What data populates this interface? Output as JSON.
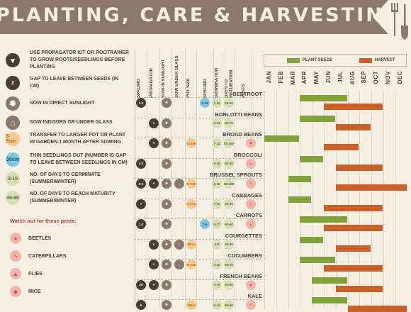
{
  "header": {
    "title": "PLANTING, CARE & HARVESTING"
  },
  "key": [
    {
      "icon": "propagator-icon",
      "text": "USE PROPAGATOR KIT OR ROOTRAINER TO GROW ROOTS/SEEDLINGS BEFORE PLANTING",
      "badge": ""
    },
    {
      "icon": "spacing-icon",
      "text": "GAP TO LEAVE BETWEEN SEEDS (IN CM)",
      "badge": "2"
    },
    {
      "icon": "sun-icon",
      "text": "SOW IN DIRECT SUNLIGHT",
      "badge": ""
    },
    {
      "icon": "house-icon",
      "text": "SOW INDOORS OR UNDER GLASS",
      "badge": ""
    },
    {
      "icon": "pot-icon",
      "text": "TRANSFER TO LARGER POT OR PLANT IN GARDEN 1 MONTH AFTER SOWING",
      "badge": "5-7cm"
    },
    {
      "icon": "thin-icon",
      "text": "THIN SEEDLINGS OUT (NUMBER IS GAP TO LEAVE BETWEEN SEEDLINGS IN CM)",
      "badge": "30cm"
    },
    {
      "icon": "germinate-icon",
      "text": "NO. OF DAYS TO GERMINATE (SUMMER/WINTER)",
      "badge": "3-10"
    },
    {
      "icon": "maturity-icon",
      "text": "NO. OF DAYS TO REACH MATURITY (SUMMER/WINTER)",
      "badge": "45-60"
    }
  ],
  "pests": {
    "title": "Watch out for these pests:",
    "items": [
      "BEETLES",
      "CATERPILLARS",
      "FLIES",
      "MICE"
    ]
  },
  "columns": [
    "SPACING",
    "PROPAGATOR",
    "SOW IN SUNLIGHT",
    "SOW UNDER GLASS",
    "POT SIZE",
    "SPACING",
    "GERMINATION",
    "DAYS TO MATURATION",
    "PESTS"
  ],
  "legend": {
    "plant": "PLANT SEEDS",
    "harvest": "HARVEST"
  },
  "months": [
    "JAN",
    "FEB",
    "MAR",
    "APR",
    "MAY",
    "JUN",
    "JUL",
    "AUG",
    "SEP",
    "OCT",
    "NOV",
    "DEC"
  ],
  "colors": {
    "plant": "#7fa33a",
    "harvest": "#c9612b",
    "dark": "#4a3b33",
    "banner": "#8a7868"
  },
  "vegetables": [
    {
      "name": "BEETROOT",
      "spacing": "2-3",
      "prop": false,
      "sun": true,
      "glass": false,
      "pot": "",
      "thin": "5-10",
      "germ": "7-10",
      "mat": "50-60",
      "pest": "none",
      "plant": [
        3,
        6
      ],
      "harvest": [
        5,
        9
      ]
    },
    {
      "name": "BORLOTTI BEANS",
      "spacing": "",
      "prop": true,
      "sun": true,
      "glass": false,
      "pot": "",
      "thin": "",
      "germ": "5-12",
      "mat": "50-70",
      "pest": "none",
      "plant": [
        3,
        5
      ],
      "harvest": [
        6,
        8
      ]
    },
    {
      "name": "BROAD BEANS",
      "spacing": "",
      "prop": true,
      "sun": true,
      "glass": false,
      "pot": "5-7cm",
      "thin": "",
      "germ": "7-10",
      "mat": "80-100",
      "pest": "mice",
      "plant": [
        0,
        2
      ],
      "harvest": [
        5,
        7
      ]
    },
    {
      "name": "BROCCOLI",
      "spacing": "2-5",
      "prop": false,
      "sun": true,
      "glass": false,
      "pot": "",
      "thin": "",
      "germ": "5-10",
      "mat": "60-80",
      "pest": "flies",
      "plant": [
        3,
        4
      ],
      "harvest": [
        6,
        9
      ]
    },
    {
      "name": "BRUSSEL SPROUTS",
      "spacing": "2-5",
      "prop": true,
      "sun": true,
      "glass": true,
      "pot": "5-7cm",
      "thin": "",
      "germ": "5-10",
      "mat": "80-100",
      "pest": "caterpillars",
      "plant": [
        2,
        3
      ],
      "harvest": [
        6,
        11
      ]
    },
    {
      "name": "CABBAGES",
      "spacing": "7",
      "prop": false,
      "sun": true,
      "glass": false,
      "pot": "5-7cm",
      "thin": "",
      "germ": "7-10",
      "mat": "50-60",
      "pest": "caterpillars",
      "plant": [
        2,
        3
      ],
      "harvest": [
        5,
        9
      ]
    },
    {
      "name": "CARROTS",
      "spacing": "1-2",
      "prop": false,
      "sun": true,
      "glass": false,
      "pot": "",
      "thin": "2-5",
      "germ": "5-17",
      "mat": "50-60",
      "pest": "flies",
      "plant": [
        3,
        6
      ],
      "harvest": [
        5,
        9
      ]
    },
    {
      "name": "COURGETTES",
      "spacing": "",
      "prop": true,
      "sun": true,
      "glass": true,
      "pot": "30cm",
      "thin": "",
      "germ": "4-8",
      "mat": "40-60",
      "pest": "none",
      "plant": [
        3,
        4
      ],
      "harvest": [
        6,
        8
      ]
    },
    {
      "name": "CUCUMBERS",
      "spacing": "",
      "prop": true,
      "sun": true,
      "glass": true,
      "pot": "5-7cm",
      "thin": "",
      "germ": "3-10",
      "mat": "50-70",
      "pest": "none",
      "plant": [
        3,
        5
      ],
      "harvest": [
        5,
        9
      ]
    },
    {
      "name": "FRENCH BEANS",
      "spacing": "20",
      "prop": true,
      "sun": true,
      "glass": false,
      "pot": "",
      "thin": "",
      "germ": "4-10",
      "mat": "50-60",
      "pest": "mice",
      "plant": [
        4,
        6
      ],
      "harvest": [
        6,
        9
      ]
    },
    {
      "name": "KALE",
      "spacing": "5",
      "prop": false,
      "sun": true,
      "glass": false,
      "pot": "20cm",
      "thin": "",
      "germ": "5-10",
      "mat": "50-60",
      "pest": "caterpillars",
      "plant": [
        4,
        6
      ],
      "harvest": [
        7,
        11
      ]
    }
  ]
}
